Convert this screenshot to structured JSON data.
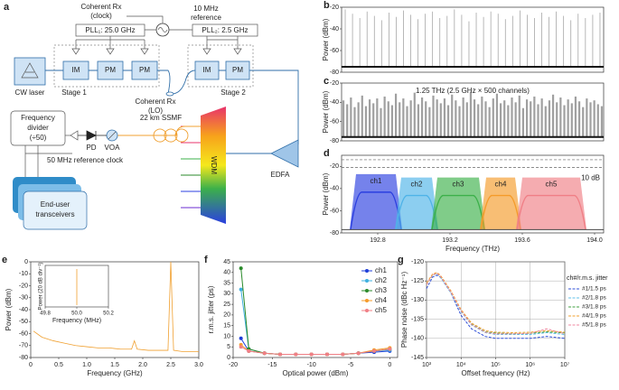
{
  "diagram": {
    "label": "a",
    "coherent_rx_clock": [
      "Coherent Rx",
      "(clock)"
    ],
    "reference": [
      "10 MHz",
      "reference"
    ],
    "pll1": "PLL₁: 25.0 GHz",
    "pll2": "PLL₂: 2.5 GHz",
    "cw_laser": "CW laser",
    "stage1": {
      "boxes": [
        "IM",
        "PM",
        "PM"
      ],
      "label": "Stage 1"
    },
    "stage2": {
      "boxes": [
        "IM",
        "PM"
      ],
      "label": "Stage 2"
    },
    "coherent_rx_lo": [
      "Coherent Rx",
      "(LO)"
    ],
    "divider": [
      "Frequency",
      "divider",
      "(÷50)"
    ],
    "pd": "PD",
    "voa": "VOA",
    "ssmf": "22 km SSMF",
    "wdm": "WDM",
    "edfa": "EDFA",
    "ref_clock": "50 MHz reference clock",
    "transceivers": [
      "End-user",
      "transceivers"
    ]
  },
  "chart_data": [
    {
      "label": "b",
      "type": "spectrum",
      "ylabel": "Power (dBm)",
      "ylim": [
        -80,
        -20
      ],
      "yticks": [
        -80,
        -60,
        -40,
        -20
      ],
      "floor": -75,
      "color": "#9a9a9a",
      "values": [
        -22,
        -26,
        -30,
        -24,
        -28,
        -32,
        -25,
        -29,
        -23,
        -27,
        -31,
        -26,
        -24,
        -30,
        -28,
        -22,
        -27,
        -33,
        -25,
        -29,
        -24,
        -26,
        -31,
        -28,
        -23,
        -27,
        -30,
        -25,
        -29,
        -24,
        -28,
        -32,
        -26,
        -30,
        -27,
        -25
      ]
    },
    {
      "label": "c",
      "type": "spectrum",
      "ylabel": "Power (dBm)",
      "ylim": [
        -80,
        -20
      ],
      "yticks": [
        -80,
        -60,
        -40,
        -20
      ],
      "floor": -76,
      "color": "#a0a0a0",
      "annotation": "1.25 THz (2.5 GHz × 500 channels)",
      "values": [
        -38,
        -42,
        -35,
        -45,
        -40,
        -33,
        -44,
        -37,
        -41,
        -36,
        -46,
        -34,
        -39,
        -43,
        -31,
        -40,
        -36,
        -44,
        -38,
        -30,
        -42,
        -35,
        -39,
        -45,
        -33,
        -37,
        -41,
        -36,
        -43,
        -32,
        -38,
        -44,
        -35,
        -40,
        -29,
        -37,
        -42,
        -34,
        -39,
        -45,
        -36,
        -31,
        -41,
        -38,
        -43,
        -35,
        -40,
        -33,
        -46,
        -37,
        -39,
        -34,
        -42,
        -36,
        -44,
        -38,
        -32,
        -40,
        -35,
        -43,
        -37,
        -41,
        -34,
        -39,
        -45,
        -36,
        -40,
        -38,
        -42,
        -44
      ]
    },
    {
      "label": "d",
      "type": "channels",
      "ylabel": "Power (dBm)",
      "xlabel": "Frequency (THz)",
      "xlim": [
        192.6,
        194.05
      ],
      "xticks": [
        192.8,
        193.2,
        193.6,
        {
          "value": 194,
          "label": "194.0"
        }
      ],
      "ylim": [
        -80,
        -10
      ],
      "yticks": [
        -80,
        -60,
        -40,
        -20
      ],
      "floor": -77,
      "reference_lines": [
        -14,
        -21
      ],
      "annotation": "10 dB",
      "series": [
        {
          "name": "ch1",
          "color": "#2b3fe0",
          "x": [
            192.68,
            192.9
          ],
          "values": [
            -27,
            -27
          ]
        },
        {
          "name": "ch2",
          "color": "#4fb3e8",
          "x": [
            192.93,
            193.1
          ],
          "values": [
            -30,
            -30
          ]
        },
        {
          "name": "ch3",
          "color": "#3cb04a",
          "x": [
            193.13,
            193.36
          ],
          "values": [
            -30,
            -30
          ]
        },
        {
          "name": "ch4",
          "color": "#f59b2a",
          "x": [
            193.4,
            193.56
          ],
          "values": [
            -30,
            -30
          ]
        },
        {
          "name": "ch5",
          "color": "#f07f86",
          "x": [
            193.6,
            193.92
          ],
          "values": [
            -30,
            -30
          ]
        }
      ]
    },
    {
      "label": "e",
      "type": "line",
      "ylabel": "Power (dBm)",
      "xlabel": "Frequency (GHz)",
      "xlim": [
        0,
        3
      ],
      "xticks": [
        0,
        0.5,
        {
          "value": 1,
          "label": "1.0"
        },
        1.5,
        {
          "value": 2,
          "label": "2.0"
        },
        2.5,
        {
          "value": 3,
          "label": "3.0"
        }
      ],
      "ylim": [
        -80,
        0
      ],
      "yticks": [
        -80,
        -70,
        -60,
        -50,
        -40,
        -30,
        -20,
        -10,
        0
      ],
      "color": "#f0a030",
      "x": [
        0.05,
        0.2,
        0.4,
        0.6,
        0.8,
        1.0,
        1.2,
        1.4,
        1.6,
        1.8,
        1.85,
        1.9,
        2.1,
        2.3,
        2.45,
        2.5,
        2.55,
        2.7,
        2.9,
        3.0
      ],
      "values": [
        -58,
        -63,
        -66,
        -68,
        -70,
        -71,
        -72,
        -72,
        -73,
        -73,
        -66,
        -73,
        -74,
        -74,
        -74,
        0,
        -74,
        -75,
        -75,
        -75
      ],
      "inset": {
        "xlabel": "Frequency (MHz)",
        "ylabel": "Power (20 dB div⁻¹)",
        "xlim": [
          49.8,
          50.2
        ],
        "xticks": [
          49.8,
          {
            "value": 50,
            "label": "50.0"
          },
          50.2
        ]
      }
    },
    {
      "label": "f",
      "type": "line",
      "markers": true,
      "legend": "upper right",
      "ylabel": "r.m.s. jitter (ps)",
      "xlabel": "Optical power (dBm)",
      "xlim": [
        -20,
        1
      ],
      "xticks": [
        -20,
        -15,
        -10,
        -5,
        0
      ],
      "ylim": [
        0,
        45
      ],
      "yticks": [
        0,
        5,
        10,
        15,
        20,
        25,
        30,
        35,
        40,
        45
      ],
      "x": [
        -19,
        -18,
        -16,
        -14,
        -12,
        -10,
        -8,
        -6,
        -4,
        -2,
        0
      ],
      "series": [
        {
          "name": "ch1",
          "color": "#1f3fd8",
          "values": [
            9,
            3,
            2,
            1.5,
            1.5,
            1.5,
            1.5,
            1.5,
            2,
            2.5,
            3
          ]
        },
        {
          "name": "ch2",
          "color": "#3fb0e0",
          "values": [
            32,
            4,
            2,
            1.5,
            1.5,
            1.5,
            1.5,
            1.5,
            2,
            3,
            3.5
          ]
        },
        {
          "name": "ch3",
          "color": "#2a8a2a",
          "values": [
            42,
            4,
            2,
            1.5,
            1.5,
            1.5,
            1.5,
            1.5,
            2,
            3,
            4
          ]
        },
        {
          "name": "ch4",
          "color": "#f59b2a",
          "values": [
            6,
            3,
            2,
            1.5,
            1.5,
            1.5,
            1.5,
            1.5,
            2,
            3.5,
            4.5
          ]
        },
        {
          "name": "ch5",
          "color": "#f07f86",
          "values": [
            5,
            3,
            2,
            1.5,
            1.5,
            1.5,
            1.5,
            1.5,
            2,
            3,
            4
          ]
        }
      ]
    },
    {
      "label": "g",
      "type": "line",
      "xlog": true,
      "grid": true,
      "dashed": true,
      "legend": "right outside",
      "legend_title": "ch#/r.m.s. jitter",
      "ylabel": "Phase noise (dBc Hz⁻¹)",
      "xlabel": "Offset frequency (Hz)",
      "xlim": [
        1000,
        10000000
      ],
      "xticks": [
        {
          "value": 1000,
          "label": "10³"
        },
        {
          "value": 10000,
          "label": "10⁴"
        },
        {
          "value": 100000,
          "label": "10⁵"
        },
        {
          "value": 1000000,
          "label": "10⁶"
        },
        {
          "value": 10000000,
          "label": "10⁷"
        }
      ],
      "ylim": [
        -145,
        -120
      ],
      "yticks": [
        -145,
        -140,
        -135,
        -130,
        -125,
        -120
      ],
      "x": [
        1000,
        1500,
        2000,
        2500,
        3000,
        5000,
        10000,
        20000,
        50000,
        100000,
        300000,
        1000000,
        3000000,
        10000000
      ],
      "series": [
        {
          "name": "#1/1.5 ps",
          "color": "#3050d8",
          "values": [
            -127,
            -124,
            -123.5,
            -124,
            -125,
            -128,
            -134,
            -137.5,
            -139.5,
            -140,
            -140,
            -140,
            -139.5,
            -140
          ]
        },
        {
          "name": "#2/1.8 ps",
          "color": "#60c0e8",
          "values": [
            -126,
            -123.5,
            -123,
            -124,
            -125,
            -128,
            -133,
            -136.5,
            -138.5,
            -139,
            -139,
            -139,
            -138.5,
            -139
          ]
        },
        {
          "name": "#3/1.8 ps",
          "color": "#40a040",
          "values": [
            -126,
            -123.5,
            -123,
            -123.8,
            -124.8,
            -127.8,
            -132.8,
            -136.3,
            -138.3,
            -138.6,
            -138.8,
            -138.7,
            -138.3,
            -138.6
          ]
        },
        {
          "name": "#4/1.9 ps",
          "color": "#f0a030",
          "values": [
            -125.5,
            -123.2,
            -122.8,
            -123.5,
            -124.5,
            -127.5,
            -132.5,
            -136,
            -138,
            -138.4,
            -138.5,
            -138.4,
            -138,
            -138.4
          ]
        },
        {
          "name": "#5/1.8 ps",
          "color": "#f08aa0",
          "values": [
            -126,
            -123.4,
            -123,
            -123.8,
            -124.8,
            -127.8,
            -132.8,
            -136.4,
            -138.4,
            -138.8,
            -138.8,
            -138.7,
            -137.5,
            -138.8
          ]
        }
      ]
    }
  ]
}
